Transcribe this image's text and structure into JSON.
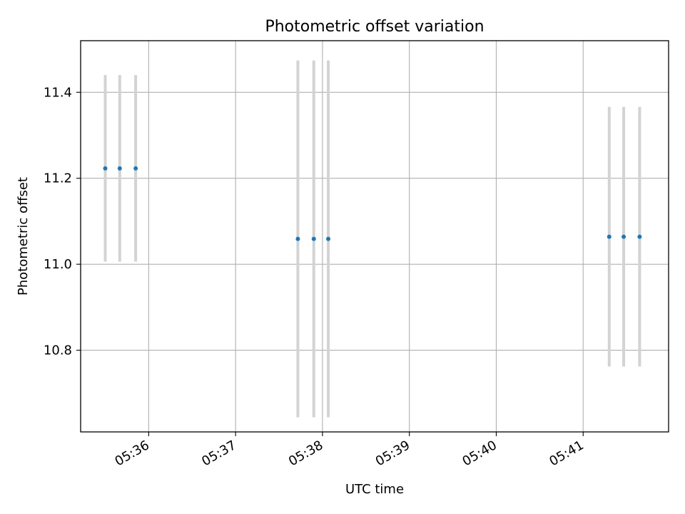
{
  "chart_data": {
    "type": "scatter",
    "title": "Photometric offset variation",
    "xlabel": "UTC time",
    "ylabel": "Photometric offset",
    "x_tick_labels": [
      "05:36",
      "05:37",
      "05:38",
      "05:39",
      "05:40",
      "05:41"
    ],
    "x_tick_values": [
      "05:36:00",
      "05:37:00",
      "05:38:00",
      "05:39:00",
      "05:40:00",
      "05:41:00"
    ],
    "y_tick_labels": [
      "10.8",
      "11.0",
      "11.2",
      "11.4"
    ],
    "y_tick_values": [
      10.8,
      11.0,
      11.2,
      11.4
    ],
    "xlim": [
      "05:35:13",
      "05:41:59"
    ],
    "ylim": [
      10.61,
      11.52
    ],
    "grid": true,
    "series": [
      {
        "points": [
          {
            "x": "05:35:30",
            "y": 11.223,
            "yerr": 0.217
          },
          {
            "x": "05:35:40",
            "y": 11.223,
            "yerr": 0.217
          },
          {
            "x": "05:35:51",
            "y": 11.223,
            "yerr": 0.217
          },
          {
            "x": "05:37:43",
            "y": 11.059,
            "yerr": 0.415
          },
          {
            "x": "05:37:54",
            "y": 11.059,
            "yerr": 0.415
          },
          {
            "x": "05:38:04",
            "y": 11.059,
            "yerr": 0.415
          },
          {
            "x": "05:41:18",
            "y": 11.064,
            "yerr": 0.302
          },
          {
            "x": "05:41:28",
            "y": 11.064,
            "yerr": 0.302
          },
          {
            "x": "05:41:39",
            "y": 11.064,
            "yerr": 0.302
          }
        ]
      }
    ],
    "colors": {
      "marker": "#1f77b4",
      "errorbar": "#d3d3d3",
      "grid": "#b0b0b0",
      "axes": "#000000"
    }
  }
}
